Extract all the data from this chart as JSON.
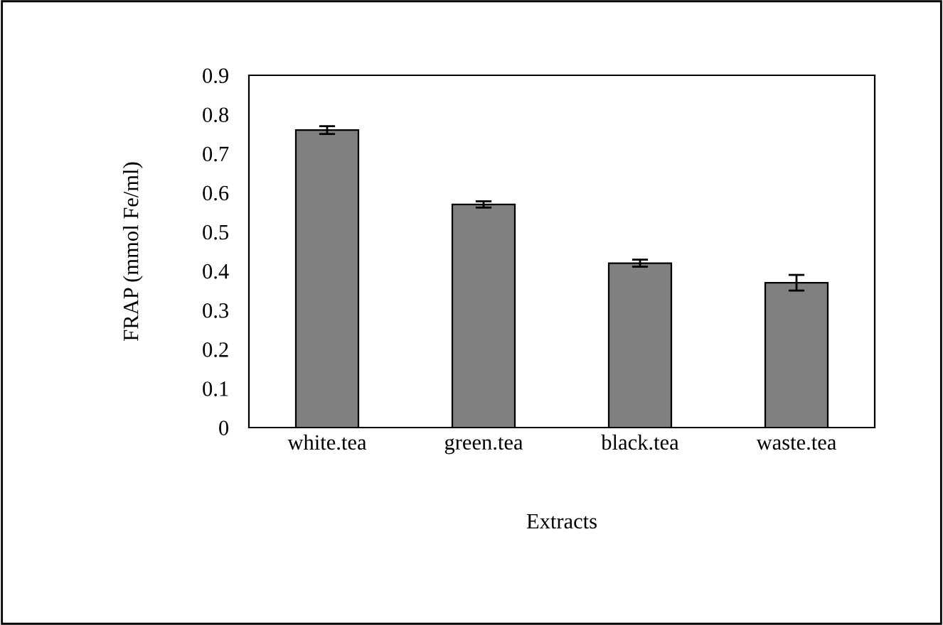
{
  "chart_data": {
    "type": "bar",
    "xlabel": "Extracts",
    "ylabel": "FRAP (mmol Fe/ml)",
    "categories": [
      "white.tea",
      "green.tea",
      "black.tea",
      "waste.tea"
    ],
    "values": [
      0.76,
      0.57,
      0.42,
      0.37
    ],
    "errors": [
      0.01,
      0.008,
      0.009,
      0.02
    ],
    "color": "#808080",
    "ylim": [
      0,
      0.9
    ],
    "yticks": [
      0,
      0.1,
      0.2,
      0.3,
      0.4,
      0.5,
      0.6,
      0.7,
      0.8,
      0.9
    ],
    "grid": false
  }
}
